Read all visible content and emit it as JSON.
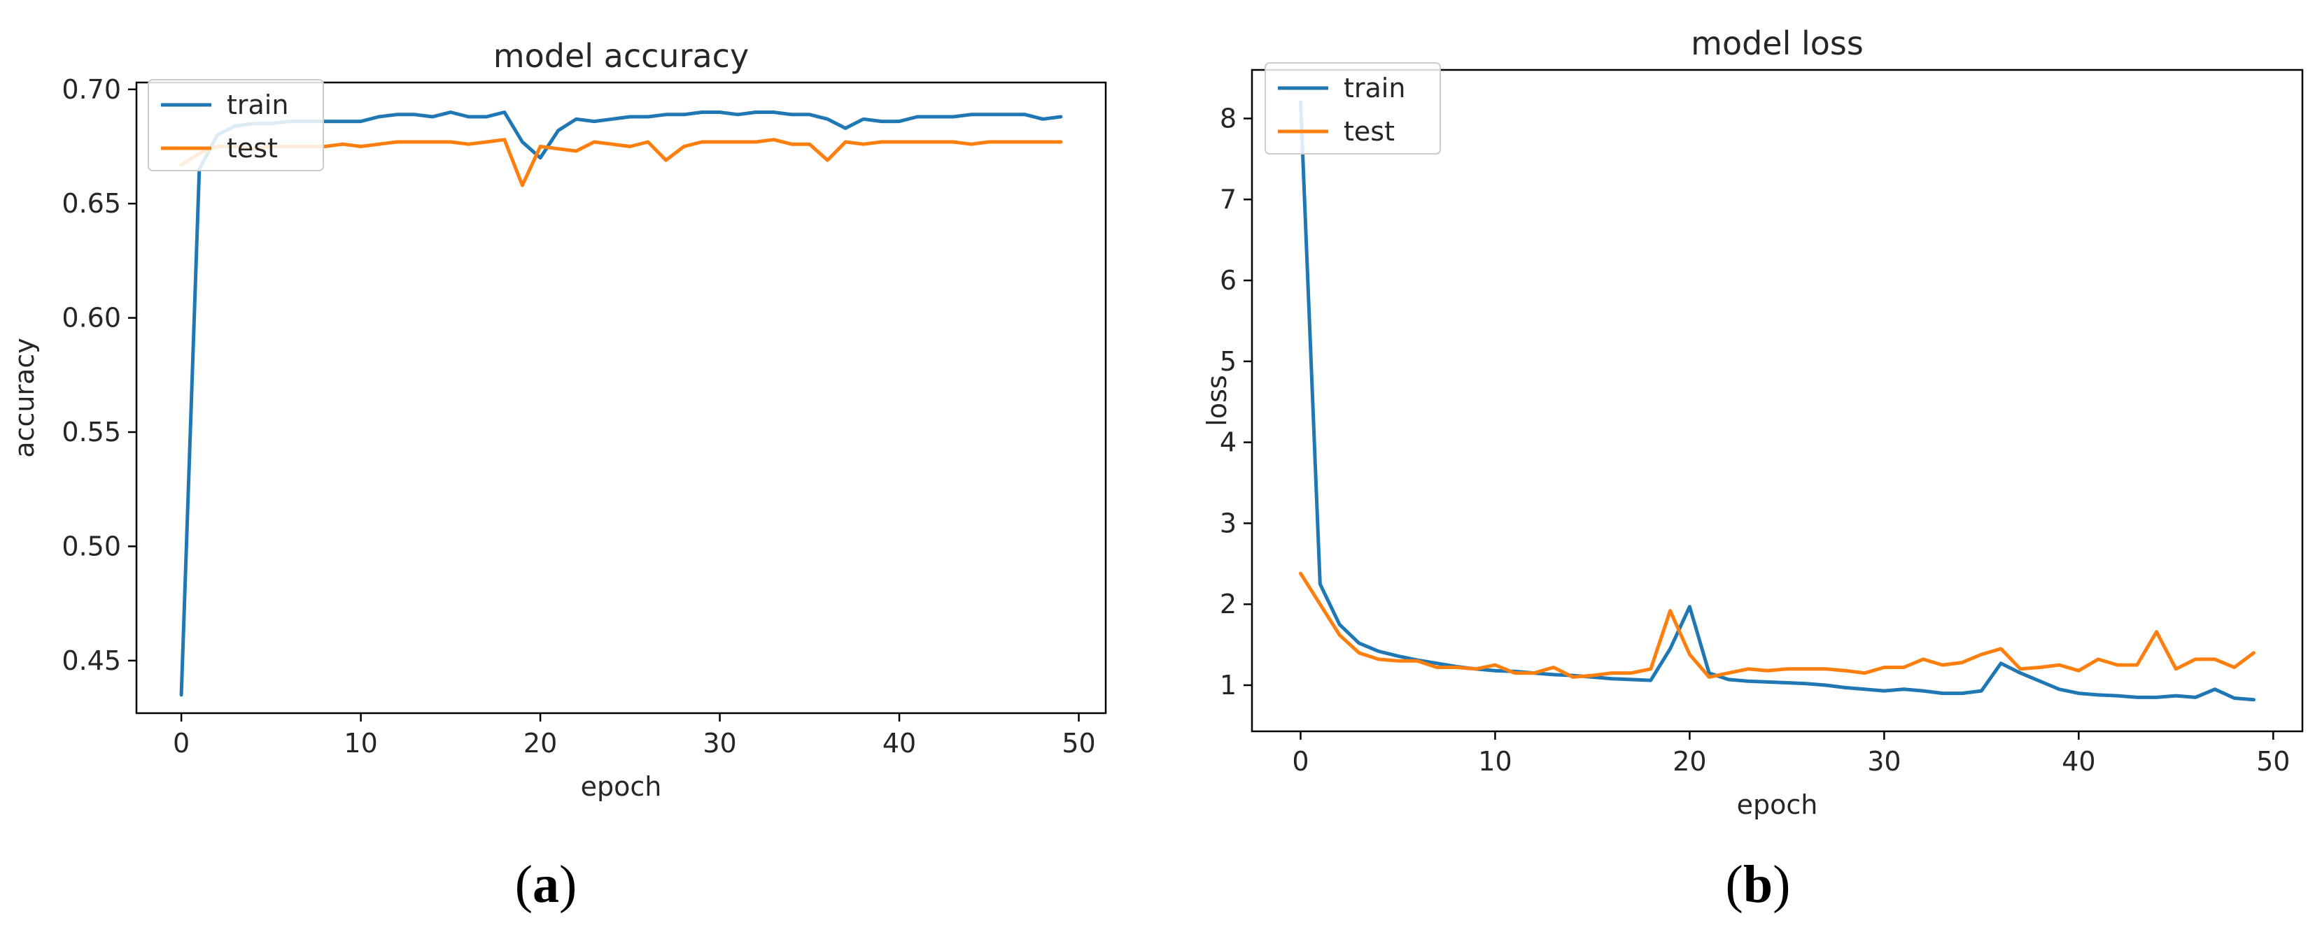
{
  "chart_data": [
    {
      "type": "line",
      "title": "model accuracy",
      "xlabel": "epoch",
      "ylabel": "accuracy",
      "xlim": [
        -2.5,
        51.5
      ],
      "ylim": [
        0.427,
        0.703
      ],
      "xticks": [
        0,
        10,
        20,
        30,
        40,
        50
      ],
      "yticks": [
        0.45,
        0.5,
        0.55,
        0.6,
        0.65,
        0.7
      ],
      "ytick_labels": [
        "0.45",
        "0.50",
        "0.55",
        "0.60",
        "0.65",
        "0.70"
      ],
      "grid": false,
      "legend_position": "top-left",
      "caption": {
        "open": "(",
        "letter": "a",
        "close": ")"
      },
      "series": [
        {
          "name": "train",
          "color": "#1f77b4",
          "x": [
            0,
            1,
            2,
            3,
            4,
            5,
            6,
            7,
            8,
            9,
            10,
            11,
            12,
            13,
            14,
            15,
            16,
            17,
            18,
            19,
            20,
            21,
            22,
            23,
            24,
            25,
            26,
            27,
            28,
            29,
            30,
            31,
            32,
            33,
            34,
            35,
            36,
            37,
            38,
            39,
            40,
            41,
            42,
            43,
            44,
            45,
            46,
            47,
            48,
            49
          ],
          "values": [
            0.435,
            0.665,
            0.68,
            0.684,
            0.685,
            0.685,
            0.686,
            0.686,
            0.686,
            0.686,
            0.686,
            0.688,
            0.689,
            0.689,
            0.688,
            0.69,
            0.688,
            0.688,
            0.69,
            0.677,
            0.67,
            0.682,
            0.687,
            0.686,
            0.687,
            0.688,
            0.688,
            0.689,
            0.689,
            0.69,
            0.69,
            0.689,
            0.69,
            0.69,
            0.689,
            0.689,
            0.687,
            0.683,
            0.687,
            0.686,
            0.686,
            0.688,
            0.688,
            0.688,
            0.689,
            0.689,
            0.689,
            0.689,
            0.687,
            0.688
          ]
        },
        {
          "name": "test",
          "color": "#ff7f0e",
          "x": [
            0,
            1,
            2,
            3,
            4,
            5,
            6,
            7,
            8,
            9,
            10,
            11,
            12,
            13,
            14,
            15,
            16,
            17,
            18,
            19,
            20,
            21,
            22,
            23,
            24,
            25,
            26,
            27,
            28,
            29,
            30,
            31,
            32,
            33,
            34,
            35,
            36,
            37,
            38,
            39,
            40,
            41,
            42,
            43,
            44,
            45,
            46,
            47,
            48,
            49
          ],
          "values": [
            0.667,
            0.672,
            0.675,
            0.675,
            0.674,
            0.675,
            0.675,
            0.675,
            0.675,
            0.676,
            0.675,
            0.676,
            0.677,
            0.677,
            0.677,
            0.677,
            0.676,
            0.677,
            0.678,
            0.658,
            0.675,
            0.674,
            0.673,
            0.677,
            0.676,
            0.675,
            0.677,
            0.669,
            0.675,
            0.677,
            0.677,
            0.677,
            0.677,
            0.678,
            0.676,
            0.676,
            0.669,
            0.677,
            0.676,
            0.677,
            0.677,
            0.677,
            0.677,
            0.677,
            0.676,
            0.677,
            0.677,
            0.677,
            0.677,
            0.677
          ]
        }
      ]
    },
    {
      "type": "line",
      "title": "model loss",
      "xlabel": "epoch",
      "ylabel": "loss",
      "xlim": [
        -2.5,
        51.5
      ],
      "ylim": [
        0.43,
        8.6
      ],
      "xticks": [
        0,
        10,
        20,
        30,
        40,
        50
      ],
      "yticks": [
        1,
        2,
        3,
        4,
        5,
        6,
        7,
        8
      ],
      "ytick_labels": [
        "1",
        "2",
        "3",
        "4",
        "5",
        "6",
        "7",
        "8"
      ],
      "grid": false,
      "legend_position": "top-left",
      "caption": {
        "open": "(",
        "letter": "b",
        "close": ")"
      },
      "series": [
        {
          "name": "train",
          "color": "#1f77b4",
          "x": [
            0,
            1,
            2,
            3,
            4,
            5,
            6,
            7,
            8,
            9,
            10,
            11,
            12,
            13,
            14,
            15,
            16,
            17,
            18,
            19,
            20,
            21,
            22,
            23,
            24,
            25,
            26,
            27,
            28,
            29,
            30,
            31,
            32,
            33,
            34,
            35,
            36,
            37,
            38,
            39,
            40,
            41,
            42,
            43,
            44,
            45,
            46,
            47,
            48,
            49
          ],
          "values": [
            8.2,
            2.25,
            1.75,
            1.52,
            1.42,
            1.36,
            1.31,
            1.27,
            1.23,
            1.2,
            1.18,
            1.17,
            1.15,
            1.13,
            1.12,
            1.1,
            1.08,
            1.07,
            1.06,
            1.45,
            1.97,
            1.15,
            1.07,
            1.05,
            1.04,
            1.03,
            1.02,
            1.0,
            0.97,
            0.95,
            0.93,
            0.95,
            0.93,
            0.9,
            0.9,
            0.93,
            1.27,
            1.15,
            1.05,
            0.95,
            0.9,
            0.88,
            0.87,
            0.85,
            0.85,
            0.87,
            0.85,
            0.95,
            0.84,
            0.82
          ]
        },
        {
          "name": "test",
          "color": "#ff7f0e",
          "x": [
            0,
            1,
            2,
            3,
            4,
            5,
            6,
            7,
            8,
            9,
            10,
            11,
            12,
            13,
            14,
            15,
            16,
            17,
            18,
            19,
            20,
            21,
            22,
            23,
            24,
            25,
            26,
            27,
            28,
            29,
            30,
            31,
            32,
            33,
            34,
            35,
            36,
            37,
            38,
            39,
            40,
            41,
            42,
            43,
            44,
            45,
            46,
            47,
            48,
            49
          ],
          "values": [
            2.38,
            2.0,
            1.62,
            1.4,
            1.32,
            1.3,
            1.3,
            1.22,
            1.22,
            1.2,
            1.25,
            1.15,
            1.15,
            1.22,
            1.1,
            1.12,
            1.15,
            1.15,
            1.2,
            1.92,
            1.38,
            1.1,
            1.15,
            1.2,
            1.18,
            1.2,
            1.2,
            1.2,
            1.18,
            1.15,
            1.22,
            1.22,
            1.32,
            1.25,
            1.28,
            1.38,
            1.45,
            1.2,
            1.22,
            1.25,
            1.18,
            1.32,
            1.25,
            1.25,
            1.66,
            1.2,
            1.32,
            1.32,
            1.22,
            1.4
          ]
        }
      ]
    }
  ]
}
